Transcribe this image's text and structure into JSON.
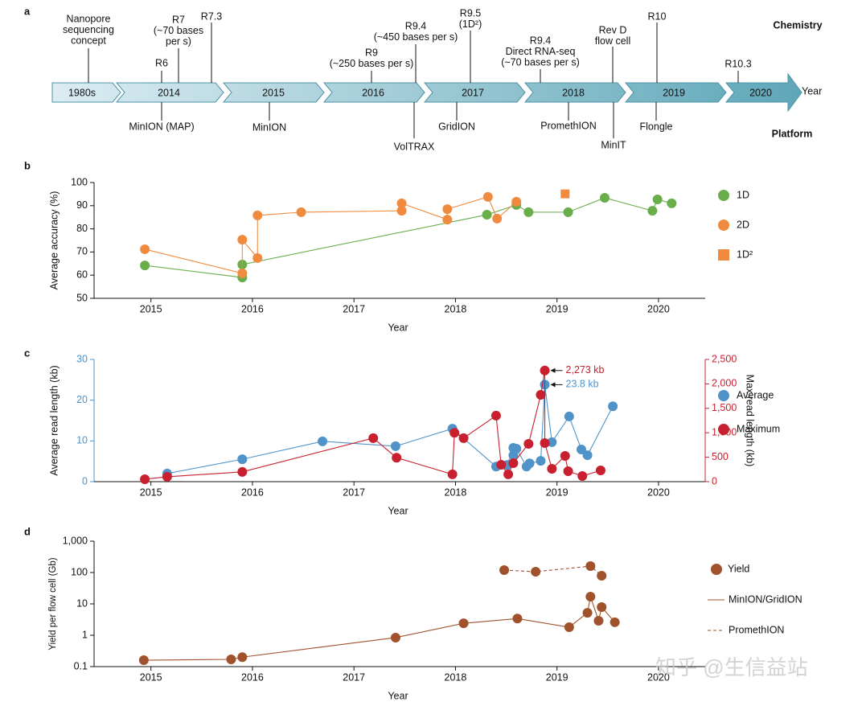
{
  "chart_data": [
    {
      "type": "timeline",
      "panel_label": "a",
      "axis_label": "Year",
      "periods": [
        "1980s",
        "2014",
        "2015",
        "2016",
        "2017",
        "2018",
        "2019",
        "2020"
      ],
      "chemistry_label": "Chemistry",
      "platform_label": "Platform",
      "chemistry": [
        {
          "lines": [
            "Nanopore",
            "sequencing",
            "concept"
          ]
        },
        {
          "lines": [
            "R6"
          ]
        },
        {
          "lines": [
            "R7",
            "(~70 bases",
            "per s)"
          ]
        },
        {
          "lines": [
            "R7.3"
          ]
        },
        {
          "lines": [
            "R9",
            "(~250 bases per s)"
          ]
        },
        {
          "lines": [
            "R9.4",
            "(~450 bases per s)"
          ]
        },
        {
          "lines": [
            "R9.5",
            "(1D²)"
          ]
        },
        {
          "lines": [
            "R9.4",
            "Direct RNA-seq",
            "(~70 bases per s)"
          ]
        },
        {
          "lines": [
            "Rev D",
            "flow cell"
          ]
        },
        {
          "lines": [
            "R10"
          ]
        },
        {
          "lines": [
            "R10.3"
          ]
        }
      ],
      "platform": [
        {
          "lines": [
            "MinION (MAP)"
          ]
        },
        {
          "lines": [
            "MinION"
          ]
        },
        {
          "lines": [
            "VolTRAX"
          ]
        },
        {
          "lines": [
            "GridION"
          ]
        },
        {
          "lines": [
            "PromethION"
          ]
        },
        {
          "lines": [
            "MinIT"
          ]
        },
        {
          "lines": [
            "Flongle"
          ]
        }
      ]
    },
    {
      "type": "line",
      "panel_label": "b",
      "xlabel": "Year",
      "ylabel": "Average accuracy (%)",
      "xlim": [
        2014.44,
        2020.46
      ],
      "xticks": [
        2015,
        2016,
        2017,
        2018,
        2019,
        2020
      ],
      "ylim": [
        50,
        100
      ],
      "yticks": [
        50,
        60,
        70,
        80,
        90,
        100
      ],
      "legend": "right",
      "series": [
        {
          "name": "1D",
          "color": "#6aae4c",
          "marker": "circle",
          "x": [
            2014.94,
            2015.9,
            2015.9,
            2018.31,
            2018.6,
            2018.72,
            2019.11,
            2019.47,
            2019.94,
            2019.99,
            2020.13
          ],
          "values": [
            64.2,
            59,
            64.6,
            86.1,
            90.3,
            87.2,
            87.2,
            93.4,
            87.8,
            92.7,
            91
          ]
        },
        {
          "name": "2D",
          "color": "#f08a3e",
          "marker": "circle",
          "x": [
            2014.94,
            2015.9,
            2015.9,
            2016.05,
            2016.05,
            2016.48,
            2017.47,
            2017.47,
            2017.92,
            2017.92,
            2018.32,
            2018.41,
            2018.6
          ],
          "values": [
            71.2,
            60.8,
            75.3,
            67.4,
            85.8,
            87.2,
            87.8,
            91,
            84,
            88.5,
            93.8,
            84.4,
            91.7
          ]
        },
        {
          "name": "1D²",
          "color": "#f08a3e",
          "marker": "square",
          "x": [
            2019.08
          ],
          "values": [
            95.1
          ]
        }
      ]
    },
    {
      "type": "line",
      "panel_label": "c",
      "xlabel": "Year",
      "ylabel": "Average read length (kb)",
      "y2label": "Max read length (kb)",
      "xlim": [
        2014.44,
        2020.46
      ],
      "xticks": [
        2015,
        2016,
        2017,
        2018,
        2019,
        2020
      ],
      "ylim": [
        0,
        30
      ],
      "yticks": [
        0,
        10,
        20,
        30
      ],
      "y2lim": [
        0,
        2500
      ],
      "y2ticks": [
        0,
        500,
        {
          "value": 1000,
          "label": "1,000"
        },
        {
          "value": 1500,
          "label": "1,500"
        },
        {
          "value": 2000,
          "label": "2,000"
        },
        {
          "value": 2500,
          "label": "2,500"
        }
      ],
      "legend": "right",
      "series": [
        {
          "name": "Average",
          "color": "#4f93c9",
          "marker": "circle",
          "x": [
            2015.16,
            2015.9,
            2016.69,
            2017.41,
            2017.97,
            2018.4,
            2018.51,
            2018.57,
            2018.57,
            2018.6,
            2018.7,
            2018.73,
            2018.84,
            2018.88,
            2018.95,
            2019.12,
            2019.24,
            2019.3,
            2019.55
          ],
          "values": [
            2,
            5.5,
            9.9,
            8.7,
            13,
            3.7,
            4.1,
            8.3,
            6.5,
            8.1,
            3.7,
            4.5,
            5.1,
            23.8,
            9.7,
            16,
            7.9,
            6.5,
            18.5
          ]
        },
        {
          "name": "Maximum",
          "color": "#c8202f",
          "marker": "circle",
          "axis": "y2",
          "x": [
            2014.94,
            2015.16,
            2015.9,
            2017.19,
            2017.42,
            2017.97,
            2017.99,
            2018.08,
            2018.4,
            2018.45,
            2018.52,
            2018.57,
            2018.72,
            2018.84,
            2018.88,
            2018.88,
            2018.95,
            2019.08,
            2019.11,
            2019.25,
            2019.43
          ],
          "values": [
            50,
            100,
            200,
            890,
            490,
            150,
            1000,
            890,
            1350,
            345,
            150,
            378,
            773,
            1776,
            2273,
            790,
            263,
            526,
            214,
            115,
            230
          ]
        }
      ],
      "annotations": [
        {
          "text": "2,273 kb",
          "color": "#c8202f"
        },
        {
          "text": "23.8 kb",
          "color": "#4f93c9"
        }
      ]
    },
    {
      "type": "line",
      "panel_label": "d",
      "xlabel": "Year",
      "ylabel": "Yield per flow cell (Gb)",
      "log_y": true,
      "xlim": [
        2014.44,
        2020.46
      ],
      "xticks": [
        2015,
        2016,
        2017,
        2018,
        2019,
        2020
      ],
      "ylim": [
        0.1,
        1000
      ],
      "yticks": [
        0.1,
        1,
        10,
        100,
        {
          "value": 1000,
          "label": "1,000"
        }
      ],
      "legend": "right",
      "marker_legend": "Yield",
      "marker_color": "#a0522d",
      "series": [
        {
          "name": "MinION/GridION",
          "color": "#a0522d",
          "marker": "circle",
          "dash": false,
          "x": [
            2014.93,
            2015.79,
            2015.9,
            2017.41,
            2018.08,
            2018.61,
            2019.12,
            2019.3,
            2019.33,
            2019.41,
            2019.44,
            2019.57
          ],
          "values": [
            0.16,
            0.17,
            0.2,
            0.84,
            2.4,
            3.4,
            1.8,
            5.2,
            17,
            2.9,
            7.9,
            2.6
          ]
        },
        {
          "name": "PromethION",
          "color": "#a0522d",
          "marker": "circle",
          "dash": true,
          "x": [
            2018.48,
            2018.79,
            2019.33,
            2019.44
          ],
          "values": [
            119,
            106,
            160,
            79
          ]
        }
      ]
    },
    {
      "type": "watermark",
      "text": "知乎 @生信益站"
    }
  ]
}
